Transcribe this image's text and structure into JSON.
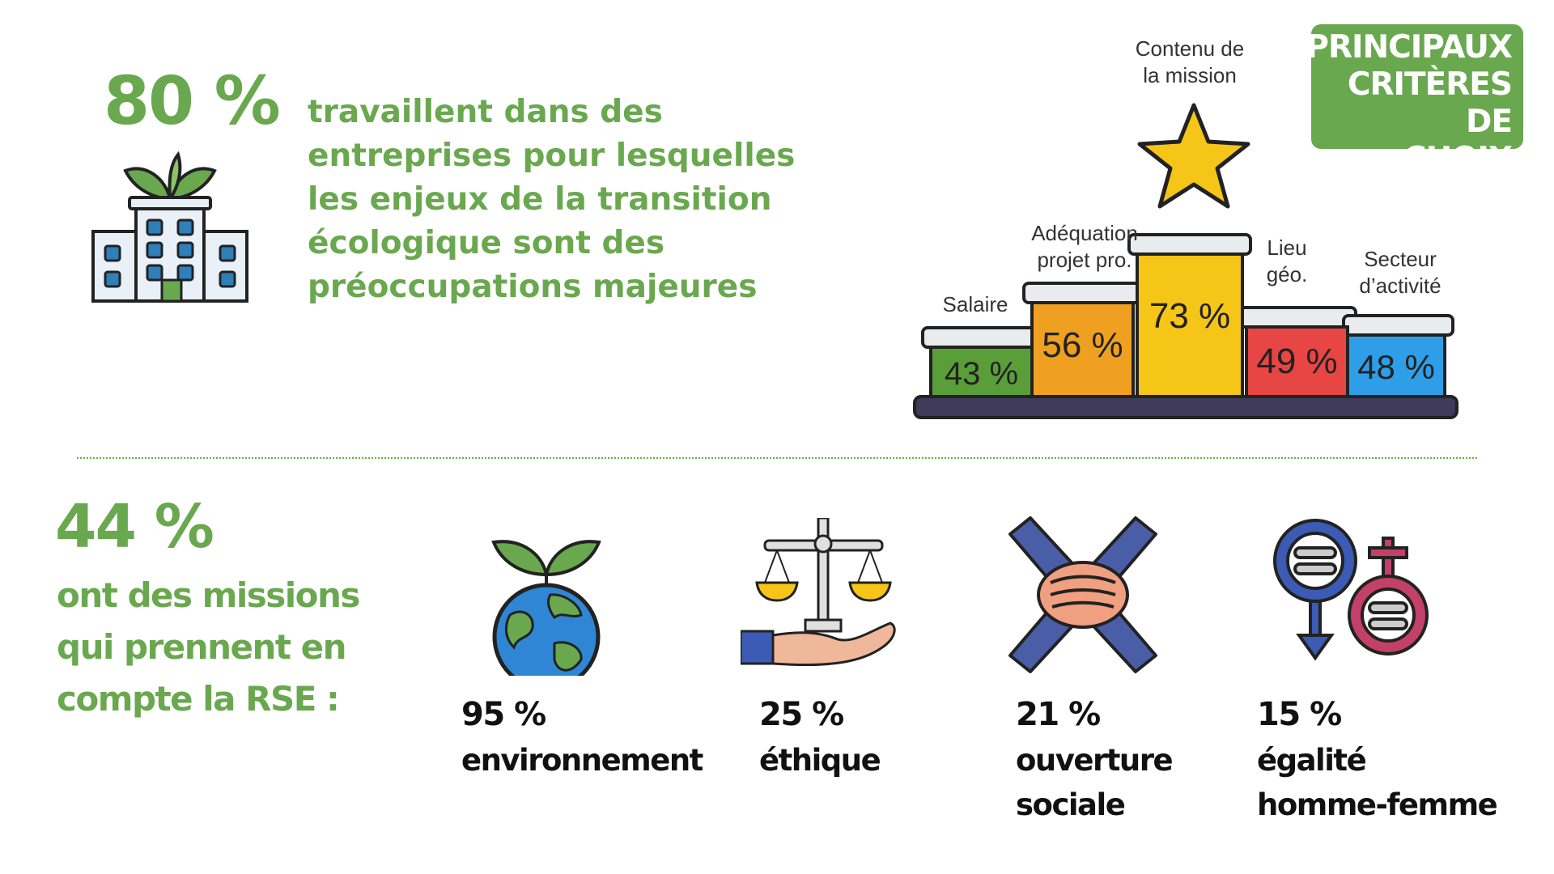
{
  "top_stat": {
    "percent": "80 %",
    "text": "travaillent dans des entreprises pour lesquelles les enjeux de la transition écologique sont des préoccupations majeures",
    "icon": "green-building-icon"
  },
  "badge": {
    "text": "PRINCIPAUX\nCRITÈRES DE\nCHOIX",
    "color": "#6aa84f"
  },
  "podium": {
    "items": [
      {
        "label": "Salaire",
        "value": "43 %",
        "color": "#5a9e3a"
      },
      {
        "label": "Adéquation\nprojet pro.",
        "value": "56 %",
        "color": "#f0a020"
      },
      {
        "label": "Contenu de\nla mission",
        "value": "73 %",
        "color": "#f5c518"
      },
      {
        "label": "Lieu\ngéo.",
        "value": "49 %",
        "color": "#e84545"
      },
      {
        "label": "Secteur\nd’activité",
        "value": "48 %",
        "color": "#2e9ee8"
      }
    ],
    "star_icon": "star-icon"
  },
  "bottom_stat": {
    "percent": "44 %",
    "text": "ont des missions qui prennent en compte la RSE :"
  },
  "rse_items": [
    {
      "percent": "95 %",
      "label": "environnement",
      "icon": "earth-plant-icon"
    },
    {
      "percent": "25 %",
      "label": "éthique",
      "icon": "scale-hand-icon"
    },
    {
      "percent": "21 %",
      "label": "ouverture\nsociale",
      "icon": "joined-hands-icon"
    },
    {
      "percent": "15 %",
      "label": "égalité\nhomme-femme",
      "icon": "gender-equality-icon"
    }
  ]
}
